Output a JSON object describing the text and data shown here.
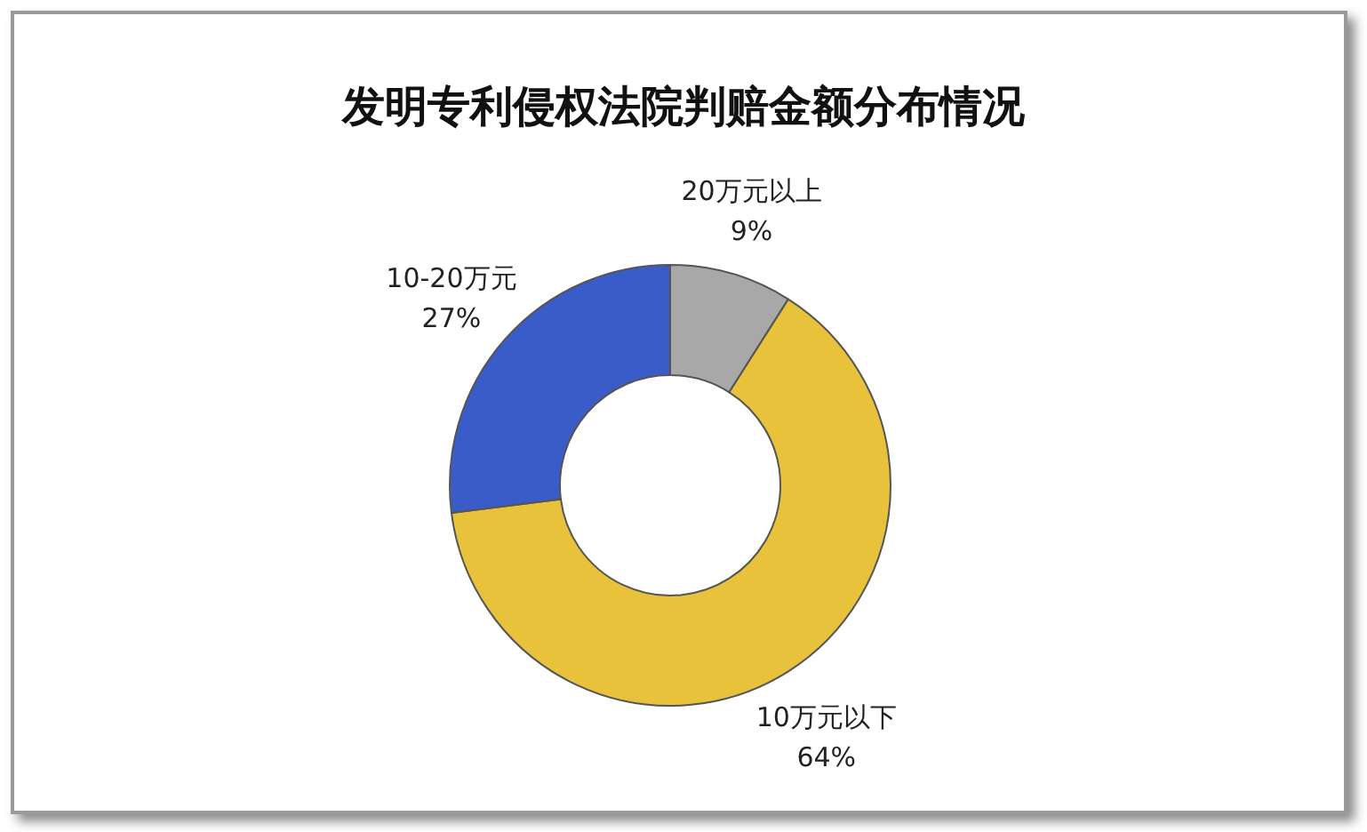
{
  "chart_data": {
    "type": "donut",
    "title": "发明专利侵权法院判赔金额分布情况",
    "categories": [
      "20万元以上",
      "10万元以下",
      "10-20万元"
    ],
    "values": [
      9,
      64,
      27
    ],
    "colors": [
      "#a8a8a8",
      "#e8c23a",
      "#3a5cc8"
    ],
    "value_labels": [
      "9%",
      "64%",
      "27%"
    ]
  }
}
